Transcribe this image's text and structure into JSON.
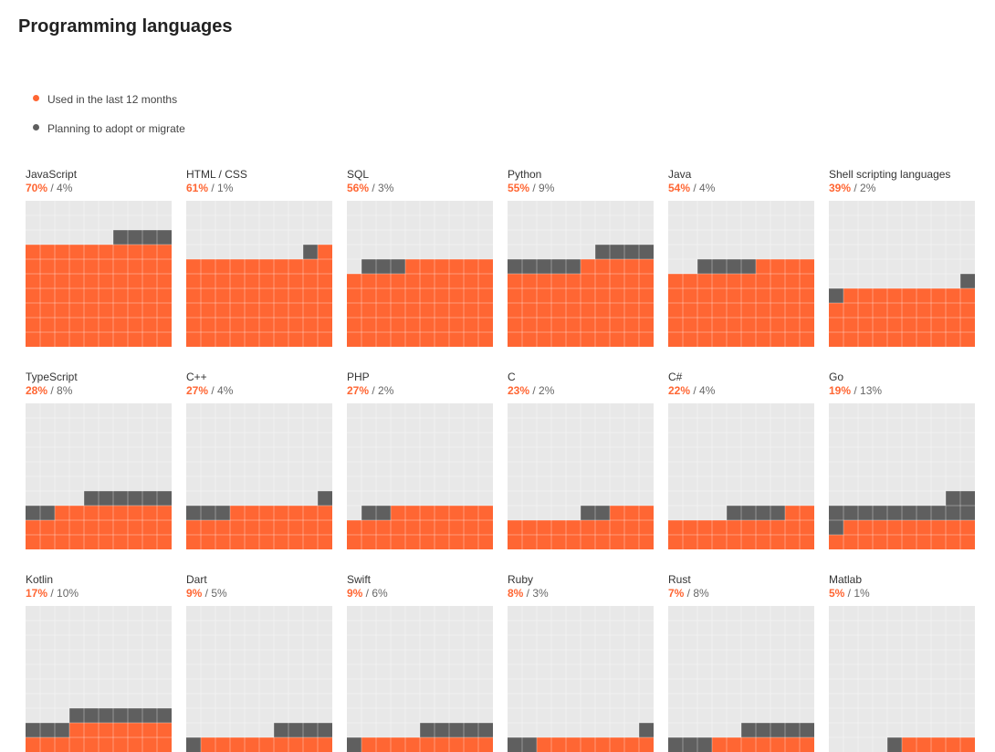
{
  "title": "Programming languages",
  "legend": [
    {
      "label": "Used in the last 12 months",
      "color": "#ff6633"
    },
    {
      "label": "Planning to adopt or migrate",
      "color": "#5f5f5f"
    }
  ],
  "colors": {
    "used": "#ff6633",
    "planning": "#5f5f5f",
    "empty": "#e8e8e8",
    "grid": "#ffffff"
  },
  "chart_data": {
    "type": "waffle",
    "units": "percent",
    "grid_cells": 100,
    "series": [
      {
        "name": "Used in the last 12 months",
        "key": "used"
      },
      {
        "name": "Planning to adopt or migrate",
        "key": "planning"
      }
    ],
    "items": [
      {
        "name": "JavaScript",
        "used": 70,
        "planning": 4
      },
      {
        "name": "HTML / CSS",
        "used": 61,
        "planning": 1
      },
      {
        "name": "SQL",
        "used": 56,
        "planning": 3
      },
      {
        "name": "Python",
        "used": 55,
        "planning": 9
      },
      {
        "name": "Java",
        "used": 54,
        "planning": 4
      },
      {
        "name": "Shell scripting languages",
        "used": 39,
        "planning": 2
      },
      {
        "name": "TypeScript",
        "used": 28,
        "planning": 8
      },
      {
        "name": "C++",
        "used": 27,
        "planning": 4
      },
      {
        "name": "PHP",
        "used": 27,
        "planning": 2
      },
      {
        "name": "C",
        "used": 23,
        "planning": 2
      },
      {
        "name": "C#",
        "used": 22,
        "planning": 4
      },
      {
        "name": "Go",
        "used": 19,
        "planning": 13
      },
      {
        "name": "Kotlin",
        "used": 17,
        "planning": 10
      },
      {
        "name": "Dart",
        "used": 9,
        "planning": 5
      },
      {
        "name": "Swift",
        "used": 9,
        "planning": 6
      },
      {
        "name": "Ruby",
        "used": 8,
        "planning": 3
      },
      {
        "name": "Rust",
        "used": 7,
        "planning": 8
      },
      {
        "name": "Matlab",
        "used": 5,
        "planning": 1
      }
    ]
  }
}
